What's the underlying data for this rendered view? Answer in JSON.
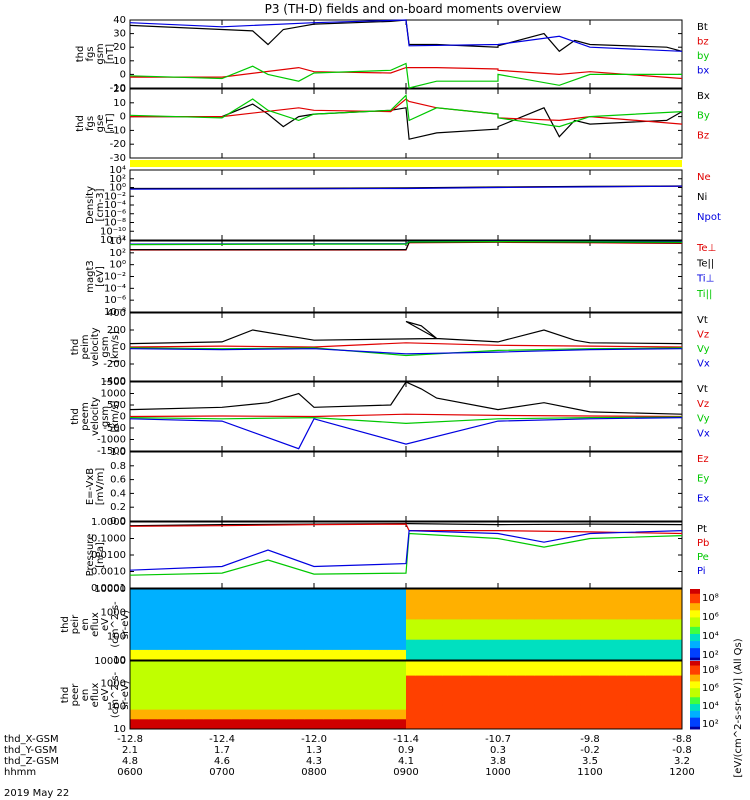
{
  "title": "P3 (TH-D) fields and on-board moments overview",
  "date_label": "2019 May 22",
  "colorbar_label": "[eV/(cm^2-s-sr-eV)] (All Qs)",
  "colors": {
    "black": "#000000",
    "red": "#e00000",
    "green": "#00c800",
    "blue": "#0000e0",
    "yellow": "#ffff00"
  },
  "chart_data": [
    {
      "type": "line",
      "panel": "fgs-gsm",
      "ylabel": [
        "thd",
        "fgs",
        "gsm",
        "[nT]"
      ],
      "ylim": [
        -10,
        40
      ],
      "ytick_labels": [
        "40",
        "30",
        "20",
        "10",
        "0",
        "-10"
      ],
      "series": [
        {
          "name": "Bt",
          "color": "black",
          "x": [
            600,
            700,
            720,
            730,
            740,
            750,
            800,
            850,
            900,
            902,
            920,
            960,
            1000,
            1030,
            1040,
            1050,
            1100,
            1150,
            1200
          ],
          "values": [
            36,
            33,
            32,
            22,
            33,
            35,
            37,
            39,
            40,
            22,
            22,
            20,
            21,
            30,
            17,
            25,
            22,
            20,
            17
          ]
        },
        {
          "name": "bz",
          "color": "red",
          "x": [
            600,
            700,
            750,
            800,
            850,
            900,
            902,
            920,
            960,
            1000,
            1040,
            1100,
            1200
          ],
          "values": [
            -2,
            -2,
            5,
            2,
            1,
            5,
            5,
            5,
            4,
            3,
            0,
            2,
            -3
          ]
        },
        {
          "name": "by",
          "color": "green",
          "x": [
            600,
            700,
            720,
            730,
            750,
            800,
            850,
            900,
            902,
            920,
            960,
            1000,
            1040,
            1100,
            1200
          ],
          "values": [
            -1,
            -3,
            6,
            0,
            -5,
            1,
            3,
            8,
            -10,
            -5,
            -5,
            0,
            -8,
            0,
            0
          ]
        },
        {
          "name": "bx",
          "color": "blue",
          "x": [
            600,
            700,
            800,
            900,
            902,
            1000,
            1040,
            1100,
            1200
          ],
          "values": [
            38,
            35,
            38,
            40,
            21,
            22,
            28,
            20,
            17
          ]
        }
      ],
      "legend": [
        "Bt",
        "bz",
        "by",
        "bx"
      ]
    },
    {
      "type": "line",
      "panel": "fgs-gse",
      "ylabel": [
        "thd",
        "fgs",
        "gse",
        "[nT]"
      ],
      "ylim": [
        -35,
        20
      ],
      "ytick_labels": [
        "20",
        "10",
        "0",
        "-10",
        "-20",
        "-30"
      ],
      "series": [
        {
          "name": "Bx",
          "color": "black",
          "x": [
            600,
            700,
            720,
            730,
            740,
            750,
            800,
            850,
            900,
            902,
            920,
            960,
            1000,
            1030,
            1040,
            1050,
            1100,
            1150,
            1200
          ],
          "values": [
            -2,
            -2,
            8,
            0,
            -10,
            -2,
            0,
            3,
            5,
            -20,
            -15,
            -12,
            -10,
            5,
            -18,
            -5,
            -8,
            -5,
            2
          ]
        },
        {
          "name": "Bz",
          "color": "red",
          "x": [
            600,
            700,
            750,
            800,
            850,
            900,
            902,
            920,
            960,
            1000,
            1040,
            1100,
            1200
          ],
          "values": [
            -2,
            -2,
            5,
            3,
            2,
            12,
            10,
            5,
            0,
            -3,
            -5,
            -2,
            -8
          ]
        },
        {
          "name": "By",
          "color": "green",
          "x": [
            600,
            700,
            720,
            730,
            750,
            800,
            850,
            900,
            902,
            920,
            960,
            1000,
            1040,
            1100,
            1200
          ],
          "values": [
            -1,
            -3,
            12,
            3,
            -5,
            0,
            3,
            15,
            -5,
            5,
            0,
            -3,
            -10,
            -2,
            2
          ]
        }
      ],
      "legend": [
        "Bx",
        "By",
        "Bz"
      ]
    },
    {
      "type": "line",
      "panel": "density",
      "ylabel": [
        "Density",
        "[cm-3]"
      ],
      "yscale": "log",
      "ylim": [
        1e-12,
        10000.0
      ],
      "ytick_labels": [
        "10^4",
        "10^2",
        "10^0",
        "10^-2",
        "10^-4",
        "10^-6",
        "10^-8",
        "10^-10",
        "10^-12"
      ],
      "series": [
        {
          "name": "Ne",
          "color": "red",
          "x": [
            600,
            800,
            900,
            1000,
            1100,
            1200
          ],
          "values": [
            0.5,
            0.6,
            0.7,
            1.2,
            1.5,
            2.0
          ]
        },
        {
          "name": "Ni",
          "color": "black",
          "x": [
            600,
            800,
            900,
            1000,
            1100,
            1200
          ],
          "values": [
            0.6,
            0.7,
            0.8,
            1.3,
            1.8,
            2.2
          ]
        },
        {
          "name": "Npot",
          "color": "blue",
          "x": [
            600,
            800,
            900,
            1000,
            1100,
            1200
          ],
          "values": [
            0.4,
            0.5,
            0.6,
            1.0,
            1.4,
            2.0
          ]
        }
      ],
      "legend": [
        "Ne",
        "Ni",
        "Npot"
      ]
    },
    {
      "type": "line",
      "panel": "magt3",
      "ylabel": [
        "magt3",
        "[eV]"
      ],
      "yscale": "log",
      "ylim": [
        1e-08,
        10000.0
      ],
      "ytick_labels": [
        "10^4",
        "10^2",
        "10^0",
        "10^-2",
        "10^-4",
        "10^-6",
        "10^-8"
      ],
      "series": [
        {
          "name": "Te⊥",
          "color": "red",
          "x": [
            600,
            800,
            900,
            902,
            1000,
            1100,
            1200
          ],
          "values": [
            300,
            300,
            300,
            5000,
            6000,
            5000,
            4000
          ]
        },
        {
          "name": "Te||",
          "color": "black",
          "x": [
            600,
            800,
            900,
            902,
            1000,
            1100,
            1200
          ],
          "values": [
            350,
            350,
            350,
            6000,
            7000,
            6000,
            5000
          ]
        },
        {
          "name": "Ti⊥",
          "color": "blue",
          "x": [
            600,
            800,
            900,
            902,
            1000,
            1100,
            1200
          ],
          "values": [
            3000,
            3500,
            3500,
            8000,
            9000,
            8000,
            7000
          ]
        },
        {
          "name": "Ti||",
          "color": "green",
          "x": [
            600,
            800,
            900,
            902,
            1000,
            1100,
            1200
          ],
          "values": [
            2500,
            3000,
            3000,
            7000,
            8000,
            7000,
            6000
          ]
        }
      ],
      "legend": [
        "Te⊥",
        "Te||",
        "Ti⊥",
        "Ti||"
      ]
    },
    {
      "type": "line",
      "panel": "peim-velocity",
      "ylabel": [
        "thd",
        "peim",
        "velocity",
        "gsm",
        "[km/s]"
      ],
      "ylim": [
        -400,
        400
      ],
      "ytick_labels": [
        "400",
        "200",
        "0",
        "-200",
        "-400"
      ],
      "series": [
        {
          "name": "Vt",
          "color": "black",
          "x": [
            600,
            700,
            720,
            800,
            880,
            900,
            910,
            920,
            1000,
            1030,
            1050,
            1100,
            1200
          ],
          "values": [
            40,
            60,
            200,
            80,
            100,
            300,
            250,
            100,
            60,
            200,
            80,
            50,
            40
          ]
        },
        {
          "name": "Vz",
          "color": "red",
          "x": [
            600,
            700,
            800,
            900,
            1000,
            1100,
            1200
          ],
          "values": [
            0,
            10,
            0,
            50,
            20,
            10,
            0
          ]
        },
        {
          "name": "Vy",
          "color": "green",
          "x": [
            600,
            700,
            800,
            900,
            1000,
            1100,
            1200
          ],
          "values": [
            -10,
            -20,
            -10,
            -100,
            -40,
            -20,
            -10
          ]
        },
        {
          "name": "Vx",
          "color": "blue",
          "x": [
            600,
            700,
            800,
            900,
            1000,
            1100,
            1200
          ],
          "values": [
            -20,
            -30,
            -20,
            -80,
            -60,
            -30,
            -20
          ]
        }
      ],
      "legend": [
        "Vt",
        "Vz",
        "Vy",
        "Vx"
      ]
    },
    {
      "type": "line",
      "panel": "peem-velocity",
      "ylabel": [
        "thd",
        "peem",
        "velocity",
        "gsm",
        "[km/s]"
      ],
      "ylim": [
        -1500,
        1500
      ],
      "ytick_labels": [
        "1500",
        "1000",
        "500",
        "0",
        "-500",
        "-1000",
        "-1500"
      ],
      "series": [
        {
          "name": "Vt",
          "color": "black",
          "x": [
            600,
            700,
            730,
            750,
            800,
            850,
            900,
            910,
            920,
            1000,
            1030,
            1100,
            1200
          ],
          "values": [
            300,
            400,
            600,
            1000,
            400,
            500,
            1500,
            1200,
            800,
            300,
            600,
            200,
            100
          ]
        },
        {
          "name": "Vz",
          "color": "red",
          "x": [
            600,
            700,
            800,
            900,
            1000,
            1100,
            1200
          ],
          "values": [
            0,
            20,
            0,
            100,
            50,
            20,
            0
          ]
        },
        {
          "name": "Vy",
          "color": "green",
          "x": [
            600,
            700,
            800,
            900,
            1000,
            1100,
            1200
          ],
          "values": [
            -50,
            -100,
            -50,
            -300,
            -100,
            -50,
            -20
          ]
        },
        {
          "name": "Vx",
          "color": "blue",
          "x": [
            600,
            700,
            750,
            800,
            900,
            1000,
            1100,
            1200
          ],
          "values": [
            -100,
            -200,
            -1400,
            -100,
            -1200,
            -200,
            -100,
            -50
          ]
        }
      ],
      "legend": [
        "Vt",
        "Vz",
        "Vy",
        "Vx"
      ]
    },
    {
      "type": "line",
      "panel": "efield",
      "ylabel": [
        "E=-VxB",
        "[mV/m]"
      ],
      "ylim": [
        0,
        1
      ],
      "ytick_labels": [
        "1.0",
        "0.8",
        "0.6",
        "0.4",
        "0.2",
        "0.0"
      ],
      "series": [
        {
          "name": "Ez",
          "color": "red",
          "x": [],
          "values": []
        },
        {
          "name": "Ey",
          "color": "green",
          "x": [],
          "values": []
        },
        {
          "name": "Ex",
          "color": "blue",
          "x": [],
          "values": []
        }
      ],
      "legend": [
        "Ez",
        "Ey",
        "Ex"
      ]
    },
    {
      "type": "line",
      "panel": "pressure",
      "ylabel": [
        "Pressure",
        "[nPa]"
      ],
      "yscale": "log",
      "ylim": [
        0.0001,
        1
      ],
      "ytick_labels": [
        "1.0000",
        "0.1000",
        "0.0100",
        "0.0010",
        "0.0001"
      ],
      "series": [
        {
          "name": "Pt",
          "color": "black",
          "x": [
            600,
            700,
            800,
            900,
            902,
            1000,
            1100,
            1200
          ],
          "values": [
            0.6,
            0.7,
            0.75,
            0.8,
            0.8,
            0.7,
            0.75,
            0.7
          ]
        },
        {
          "name": "Pb",
          "color": "red",
          "x": [
            600,
            700,
            800,
            900,
            902,
            1000,
            1100,
            1200
          ],
          "values": [
            0.55,
            0.6,
            0.7,
            0.75,
            0.3,
            0.3,
            0.25,
            0.2
          ]
        },
        {
          "name": "Pe",
          "color": "green",
          "x": [
            600,
            700,
            730,
            800,
            900,
            902,
            1000,
            1030,
            1100,
            1200
          ],
          "values": [
            0.0006,
            0.0008,
            0.005,
            0.0007,
            0.0008,
            0.2,
            0.1,
            0.03,
            0.1,
            0.15
          ]
        },
        {
          "name": "Pi",
          "color": "blue",
          "x": [
            600,
            700,
            730,
            800,
            900,
            902,
            1000,
            1030,
            1100,
            1200
          ],
          "values": [
            0.0012,
            0.002,
            0.02,
            0.002,
            0.003,
            0.3,
            0.2,
            0.06,
            0.2,
            0.3
          ]
        }
      ],
      "legend": [
        "Pt",
        "Pb",
        "Pe",
        "Pi"
      ]
    },
    {
      "type": "heatmap",
      "panel": "peir-eflux",
      "ylabel": [
        "thd",
        "peir",
        "en",
        "eflux",
        "eV",
        "(cm^2-s-",
        "sr-eV)"
      ],
      "yscale": "log",
      "ylim": [
        5,
        10000
      ],
      "ytick_labels": [
        "10000",
        "1000",
        "100",
        "10"
      ],
      "colorbar_tick_labels": [
        "10^8",
        "10^6",
        "10^4",
        "10^2"
      ]
    },
    {
      "type": "heatmap",
      "panel": "peer-eflux",
      "ylabel": [
        "thd",
        "peer",
        "en",
        "eflux",
        "eV",
        "(cm^2-s-",
        "sr-eV)"
      ],
      "yscale": "log",
      "ylim": [
        5,
        10000
      ],
      "ytick_labels": [
        "10000",
        "1000",
        "100",
        "10"
      ],
      "colorbar_tick_labels": [
        "10^8",
        "10^6",
        "10^4",
        "10^2"
      ]
    }
  ],
  "x_axis": {
    "row_labels": [
      "thd_X-GSM",
      "thd_Y-GSM",
      "thd_Z-GSM",
      "hhmm"
    ],
    "ticks": [
      {
        "x": -12.8,
        "y": 2.1,
        "z": 4.8,
        "hhmm": "0600"
      },
      {
        "x": -12.4,
        "y": 1.7,
        "z": 4.6,
        "hhmm": "0700"
      },
      {
        "x": -12.0,
        "y": 1.3,
        "z": 4.3,
        "hhmm": "0800"
      },
      {
        "x": -11.4,
        "y": 0.9,
        "z": 4.1,
        "hhmm": "0900"
      },
      {
        "x": -10.7,
        "y": 0.3,
        "z": 3.8,
        "hhmm": "1000"
      },
      {
        "x": -9.8,
        "y": -0.2,
        "z": 3.5,
        "hhmm": "1100"
      },
      {
        "x": -8.8,
        "y": -0.8,
        "z": 3.2,
        "hhmm": "1200"
      }
    ]
  }
}
